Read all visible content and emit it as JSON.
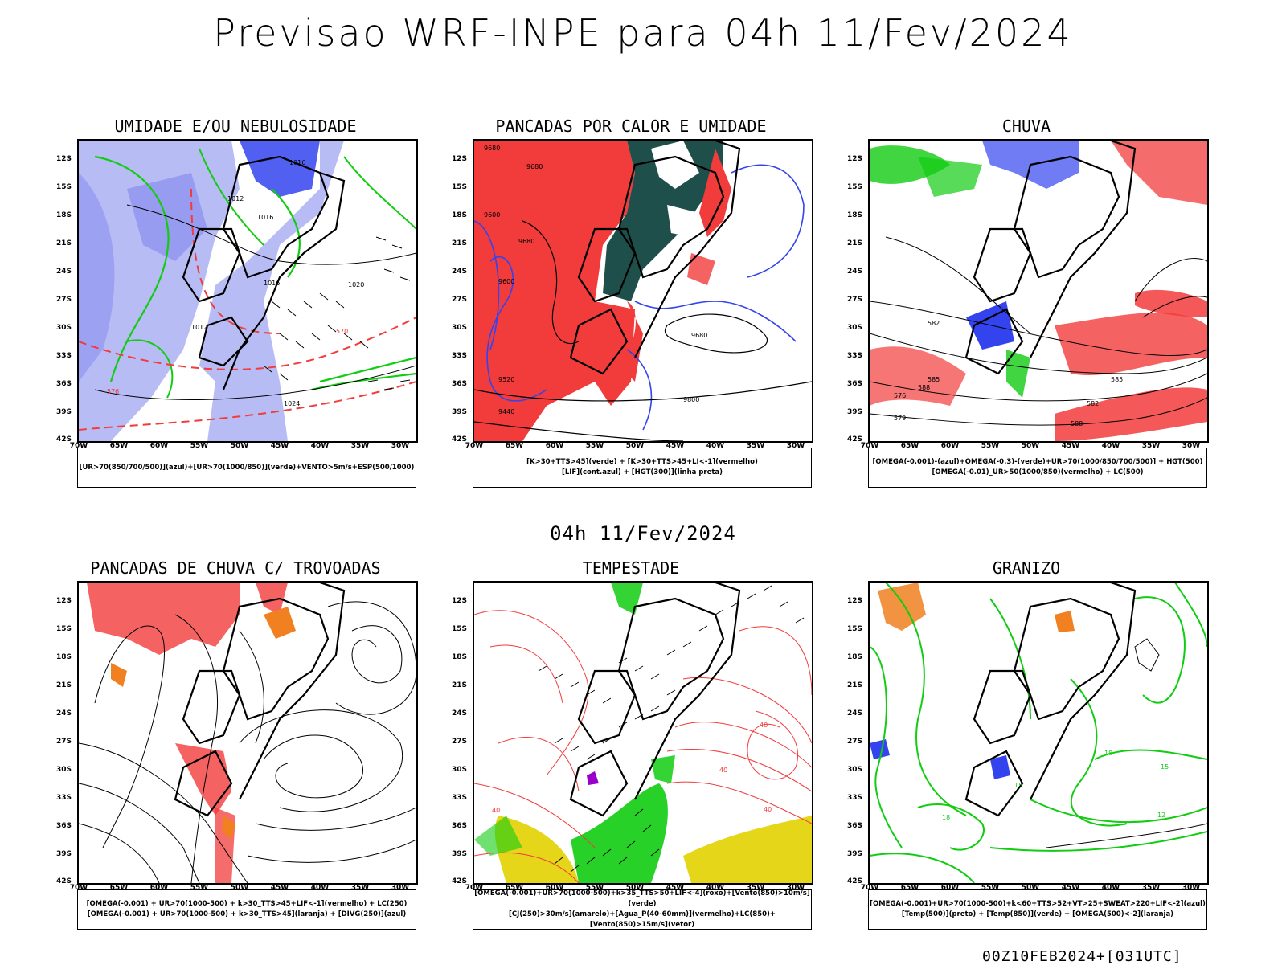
{
  "header": {
    "title": "Previsao WRF-INPE  para 04h 11/Fev/2024"
  },
  "mid_title": "04h 11/Fev/2024",
  "footer": "00Z10FEB2024+[031UTC]",
  "axes": {
    "lat_labels": [
      "12S",
      "15S",
      "18S",
      "21S",
      "24S",
      "27S",
      "30S",
      "33S",
      "36S",
      "39S",
      "42S"
    ],
    "lon_labels": [
      "70W",
      "65W",
      "60W",
      "55W",
      "50W",
      "45W",
      "40W",
      "35W",
      "30W"
    ]
  },
  "panels": [
    {
      "id": "umidade",
      "title": "UMIDADE E/OU NEBULOSIDADE",
      "legend": [
        "[UR>70(850/700/500)](azul)+[UR>70(1000/850)](verde)+VENTO>5m/s+ESP(500/1000)"
      ],
      "contour_labels": [
        "1016",
        "1012",
        "1016",
        "1016",
        "1020",
        "1012",
        "1024",
        "570",
        "576"
      ]
    },
    {
      "id": "pancadas_calor",
      "title": "PANCADAS POR CALOR E UMIDADE",
      "legend": [
        "[K>30+TTS>45](verde) + [K>30+TTS>45+LI<-1](vermelho)",
        "[LIF](cont.azul) + [HGT(300)](linha preta)"
      ],
      "contour_labels": [
        "9680",
        "9600",
        "9680",
        "9680",
        "9600",
        "9520",
        "9440",
        "9680",
        "9800"
      ]
    },
    {
      "id": "chuva",
      "title": "CHUVA",
      "legend": [
        "[OMEGA(-0.001)-(azul)+OMEGA(-0.3)-(verde)+UR>70(1000/850/700/500)] + HGT(500)",
        "[OMEGA(-0.01)_UR>50(1000/850)(vermelho) + LC(500)"
      ],
      "contour_labels": [
        "582",
        "585",
        "588",
        "576",
        "579",
        "585",
        "582",
        "588"
      ]
    },
    {
      "id": "pancadas_trovoadas",
      "title": "PANCADAS DE CHUVA C/ TROVOADAS",
      "legend": [
        "[OMEGA(-0.001) + UR>70(1000-500) + k>30_TTS>45+LIF<-1](vermelho) + LC(250)",
        "[OMEGA(-0.001) + UR>70(1000-500) + k>30_TTS>45](laranja) + [DIVG(250)](azul)"
      ],
      "contour_labels": []
    },
    {
      "id": "tempestade",
      "title": "TEMPESTADE",
      "legend": [
        "[OMEGA(-0.001)+UR>70(1000-500)+k>35_TTS>50+LIF<-4](roxo)+[Vento(850)>10m/s](verde)",
        "[CJ(250)>30m/s](amarelo)+[Agua_P(40-60mm)](vermelho)+LC(850)+[Vento(850)>15m/s](vetor)"
      ],
      "contour_labels": [
        "40",
        "40",
        "40",
        "40"
      ]
    },
    {
      "id": "granizo",
      "title": "GRANIZO",
      "legend": [
        "[OMEGA(-0.001)+UR>70(1000-500)+k<60+TTS>52+VT>25+SWEAT>220+LIF<-2](azul)",
        "[Temp(500)](preto) + [Temp(850)](verde) + [OMEGA(500)<-2](laranja)"
      ],
      "contour_labels": [
        "18",
        "15",
        "12",
        "15",
        "18"
      ]
    }
  ],
  "colors": {
    "blue": "#3344ee",
    "lightblue": "#b8bcf4",
    "green": "#11cc11",
    "red": "#f23b3b",
    "darkgreen": "#1f4f4a",
    "orange": "#f08020",
    "yellow": "#e6d619",
    "purple": "#9900cc"
  }
}
